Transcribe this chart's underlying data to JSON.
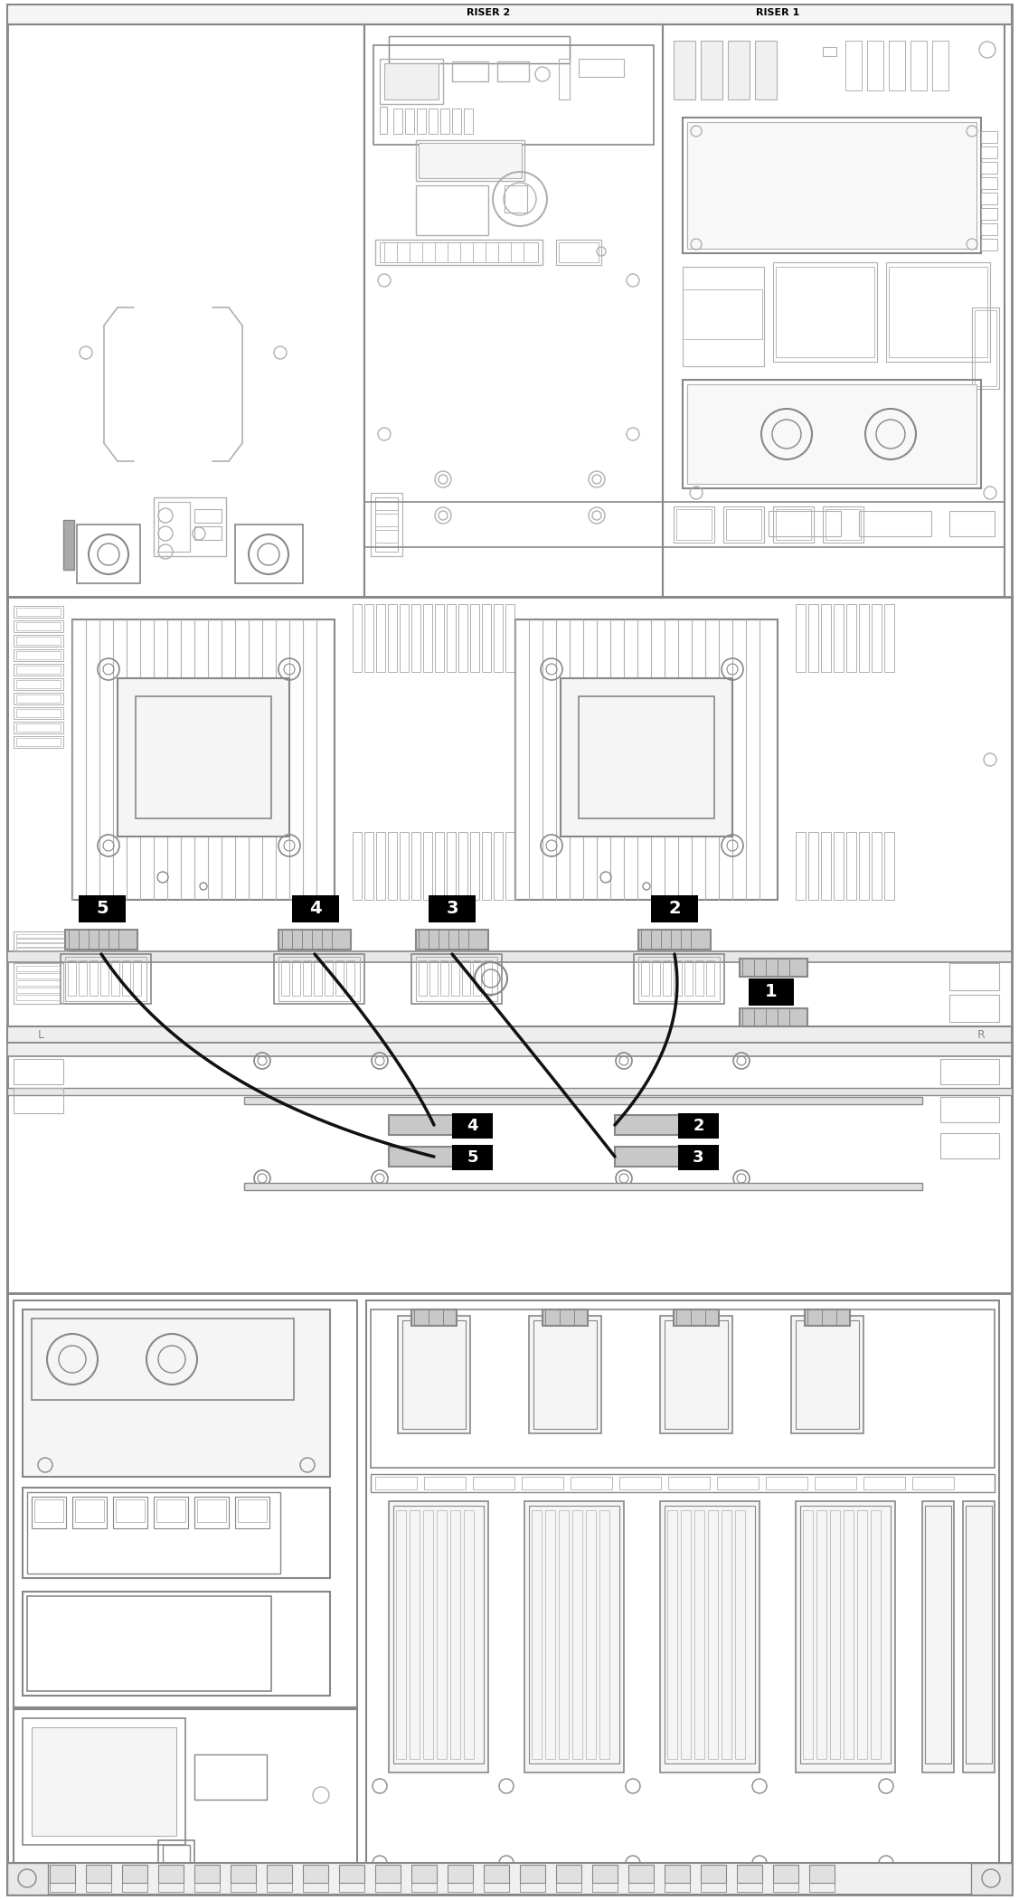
{
  "bg_color": "#ffffff",
  "lc": "#b0b0b0",
  "dc": "#888888",
  "bk": "#000000",
  "label_bg": "#000000",
  "label_fg": "#ffffff",
  "fig_width": 11.27,
  "fig_height": 21.01,
  "riser1_label": "RISER 1",
  "riser2_label": "RISER 2",
  "cable_color": "#111111",
  "gray_connector": "#c0c0c0",
  "mid_gray": "#aaaaaa"
}
